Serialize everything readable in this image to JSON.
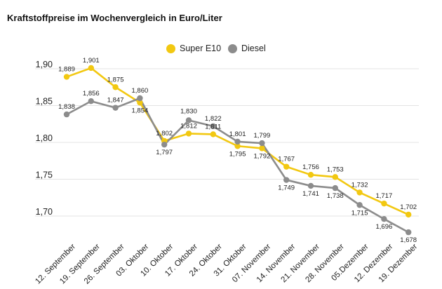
{
  "chart_data": {
    "type": "line",
    "title": "Kraftstoffpreise im Wochenvergleich in Euro/Liter",
    "categories": [
      "12. September",
      "19. September",
      "26. September",
      "03. Oktober",
      "10. Oktober",
      "17. Oktober",
      "24. Oktober",
      "31. Oktober",
      "07. November",
      "14. November",
      "21. November",
      "28. November",
      "05.Dezember",
      "12. Dezember",
      "19. Dezember"
    ],
    "series": [
      {
        "name": "Super E10",
        "color": "#f2c811",
        "values": [
          1.889,
          1.901,
          1.875,
          1.854,
          1.802,
          1.812,
          1.811,
          1.795,
          1.792,
          1.767,
          1.756,
          1.753,
          1.732,
          1.717,
          1.702
        ],
        "labels": [
          "1,889",
          "1,901",
          "1,875",
          "1,854",
          "1,802",
          "1,812",
          "1,811",
          "1,795",
          "1,792",
          "1,767",
          "1,756",
          "1,753",
          "1,732",
          "1,717",
          "1,702"
        ]
      },
      {
        "name": "Diesel",
        "color": "#8c8c8c",
        "values": [
          1.838,
          1.856,
          1.847,
          1.86,
          1.797,
          1.83,
          1.822,
          1.801,
          1.799,
          1.749,
          1.741,
          1.738,
          1.715,
          1.696,
          1.678
        ],
        "labels": [
          "1,838",
          "1,856",
          "1,847",
          "1,860",
          "1,797",
          "1,830",
          "1,822",
          "1,801",
          "1,799",
          "1,749",
          "1,741",
          "1,738",
          "1,715",
          "1,696",
          "1,678"
        ]
      }
    ],
    "yticks": [
      "1,70",
      "1,75",
      "1,80",
      "1,85",
      "1,90"
    ],
    "yticks_values": [
      1.7,
      1.75,
      1.8,
      1.85,
      1.9
    ],
    "ylim": [
      1.68,
      1.91
    ],
    "grid": true,
    "legend_position": "top-center"
  }
}
